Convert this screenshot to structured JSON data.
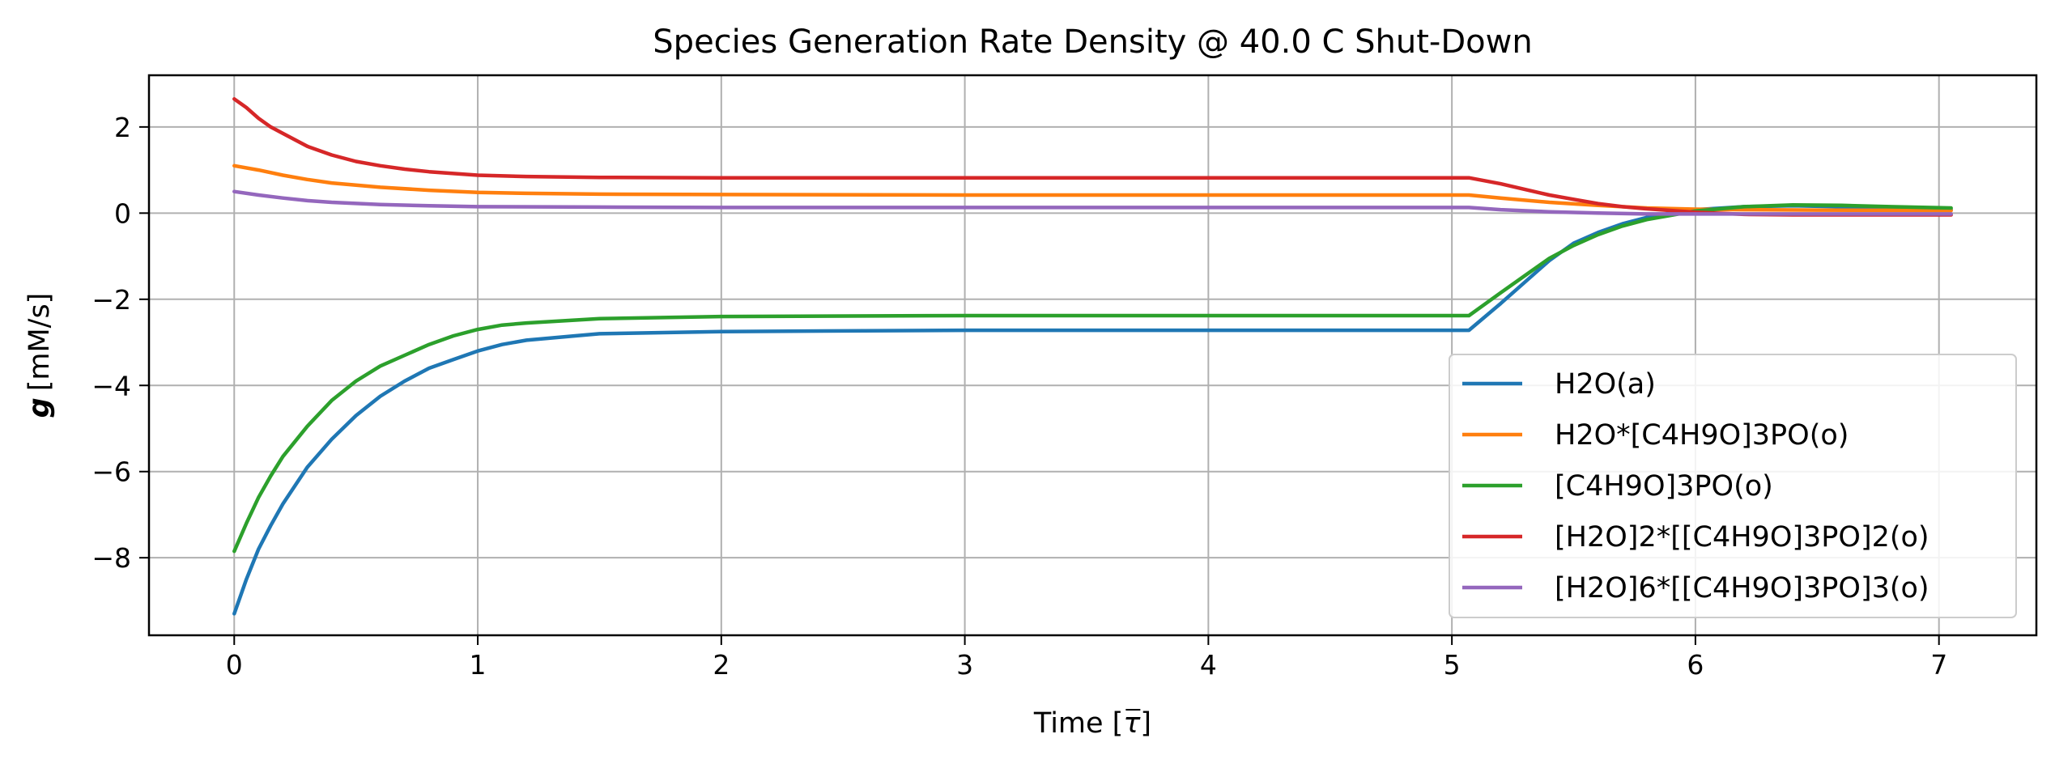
{
  "chart_data": {
    "type": "line",
    "title": "Species Generation Rate Density @ 40.0 C Shut-Down",
    "xlabel_prefix": "Time [",
    "xlabel_symbol": "τ",
    "xlabel_suffix": "]",
    "ylabel_symbol": "g",
    "ylabel_unit": "[mM/s]",
    "xlim": [
      -0.35,
      7.4
    ],
    "ylim": [
      -9.8,
      3.2
    ],
    "xticks": [
      0,
      1,
      2,
      3,
      4,
      5,
      6,
      7
    ],
    "yticks": [
      -8,
      -6,
      -4,
      -2,
      0,
      2
    ],
    "xtick_labels": [
      "0",
      "1",
      "2",
      "3",
      "4",
      "5",
      "6",
      "7"
    ],
    "ytick_labels": [
      "−8",
      "−6",
      "−4",
      "−2",
      "0",
      "2"
    ],
    "grid": true,
    "legend_position": "lower-right",
    "series": [
      {
        "name": "H2O(a)",
        "color": "#1f77b4",
        "points": [
          [
            0,
            -9.3
          ],
          [
            0.05,
            -8.5
          ],
          [
            0.1,
            -7.8
          ],
          [
            0.15,
            -7.25
          ],
          [
            0.2,
            -6.75
          ],
          [
            0.3,
            -5.9
          ],
          [
            0.4,
            -5.25
          ],
          [
            0.5,
            -4.7
          ],
          [
            0.6,
            -4.25
          ],
          [
            0.7,
            -3.9
          ],
          [
            0.8,
            -3.6
          ],
          [
            0.9,
            -3.4
          ],
          [
            1.0,
            -3.2
          ],
          [
            1.1,
            -3.05
          ],
          [
            1.2,
            -2.95
          ],
          [
            1.4,
            -2.85
          ],
          [
            1.5,
            -2.8
          ],
          [
            2.0,
            -2.75
          ],
          [
            3.0,
            -2.72
          ],
          [
            4.0,
            -2.72
          ],
          [
            5.07,
            -2.72
          ],
          [
            5.2,
            -2.1
          ],
          [
            5.3,
            -1.6
          ],
          [
            5.4,
            -1.1
          ],
          [
            5.5,
            -0.7
          ],
          [
            5.6,
            -0.45
          ],
          [
            5.7,
            -0.25
          ],
          [
            5.8,
            -0.1
          ],
          [
            5.9,
            0.0
          ],
          [
            6.0,
            0.08
          ],
          [
            6.2,
            0.15
          ],
          [
            6.4,
            0.17
          ],
          [
            6.6,
            0.15
          ],
          [
            6.8,
            0.12
          ],
          [
            7.05,
            0.08
          ]
        ]
      },
      {
        "name": "H2O*[C4H9O]3PO(o)",
        "color": "#ff7f0e",
        "points": [
          [
            0,
            1.1
          ],
          [
            0.1,
            1.0
          ],
          [
            0.2,
            0.88
          ],
          [
            0.3,
            0.78
          ],
          [
            0.4,
            0.7
          ],
          [
            0.6,
            0.6
          ],
          [
            0.8,
            0.53
          ],
          [
            1.0,
            0.48
          ],
          [
            1.2,
            0.46
          ],
          [
            1.5,
            0.44
          ],
          [
            2.0,
            0.43
          ],
          [
            3.0,
            0.42
          ],
          [
            4.0,
            0.42
          ],
          [
            5.07,
            0.42
          ],
          [
            5.2,
            0.35
          ],
          [
            5.4,
            0.25
          ],
          [
            5.6,
            0.18
          ],
          [
            5.8,
            0.12
          ],
          [
            6.0,
            0.09
          ],
          [
            6.2,
            0.08
          ],
          [
            6.5,
            0.07
          ],
          [
            7.05,
            0.06
          ]
        ]
      },
      {
        "name": "[C4H9O]3PO(o)",
        "color": "#2ca02c",
        "points": [
          [
            0,
            -7.85
          ],
          [
            0.05,
            -7.2
          ],
          [
            0.1,
            -6.6
          ],
          [
            0.15,
            -6.1
          ],
          [
            0.2,
            -5.65
          ],
          [
            0.3,
            -4.95
          ],
          [
            0.4,
            -4.35
          ],
          [
            0.5,
            -3.9
          ],
          [
            0.6,
            -3.55
          ],
          [
            0.7,
            -3.3
          ],
          [
            0.8,
            -3.05
          ],
          [
            0.9,
            -2.85
          ],
          [
            1.0,
            -2.7
          ],
          [
            1.1,
            -2.6
          ],
          [
            1.2,
            -2.55
          ],
          [
            1.5,
            -2.45
          ],
          [
            2.0,
            -2.4
          ],
          [
            3.0,
            -2.38
          ],
          [
            4.0,
            -2.38
          ],
          [
            5.07,
            -2.38
          ],
          [
            5.2,
            -1.85
          ],
          [
            5.3,
            -1.45
          ],
          [
            5.4,
            -1.05
          ],
          [
            5.5,
            -0.75
          ],
          [
            5.6,
            -0.5
          ],
          [
            5.7,
            -0.3
          ],
          [
            5.8,
            -0.15
          ],
          [
            5.9,
            -0.05
          ],
          [
            6.0,
            0.05
          ],
          [
            6.2,
            0.15
          ],
          [
            6.4,
            0.19
          ],
          [
            6.6,
            0.18
          ],
          [
            6.8,
            0.15
          ],
          [
            7.05,
            0.12
          ]
        ]
      },
      {
        "name": "[H2O]2*[[C4H9O]3PO]2(o)",
        "color": "#d62728",
        "points": [
          [
            0,
            2.65
          ],
          [
            0.05,
            2.45
          ],
          [
            0.1,
            2.2
          ],
          [
            0.15,
            2.0
          ],
          [
            0.2,
            1.85
          ],
          [
            0.3,
            1.55
          ],
          [
            0.4,
            1.35
          ],
          [
            0.5,
            1.2
          ],
          [
            0.6,
            1.1
          ],
          [
            0.7,
            1.02
          ],
          [
            0.8,
            0.96
          ],
          [
            0.9,
            0.92
          ],
          [
            1.0,
            0.88
          ],
          [
            1.2,
            0.85
          ],
          [
            1.5,
            0.83
          ],
          [
            2.0,
            0.82
          ],
          [
            3.0,
            0.82
          ],
          [
            4.0,
            0.82
          ],
          [
            5.07,
            0.82
          ],
          [
            5.2,
            0.68
          ],
          [
            5.3,
            0.55
          ],
          [
            5.4,
            0.42
          ],
          [
            5.5,
            0.32
          ],
          [
            5.6,
            0.22
          ],
          [
            5.7,
            0.15
          ],
          [
            5.8,
            0.1
          ],
          [
            6.0,
            0.02
          ],
          [
            6.2,
            -0.03
          ],
          [
            6.4,
            -0.04
          ],
          [
            6.6,
            -0.04
          ],
          [
            7.05,
            -0.04
          ]
        ]
      },
      {
        "name": "[H2O]6*[[C4H9O]3PO]3(o)",
        "color": "#9467bd",
        "points": [
          [
            0,
            0.5
          ],
          [
            0.1,
            0.42
          ],
          [
            0.2,
            0.35
          ],
          [
            0.3,
            0.29
          ],
          [
            0.4,
            0.25
          ],
          [
            0.6,
            0.2
          ],
          [
            0.8,
            0.17
          ],
          [
            1.0,
            0.15
          ],
          [
            1.5,
            0.14
          ],
          [
            2.0,
            0.13
          ],
          [
            3.0,
            0.13
          ],
          [
            4.0,
            0.13
          ],
          [
            5.07,
            0.13
          ],
          [
            5.2,
            0.08
          ],
          [
            5.4,
            0.03
          ],
          [
            5.6,
            0.0
          ],
          [
            5.8,
            -0.02
          ],
          [
            6.0,
            -0.02
          ],
          [
            6.5,
            -0.02
          ],
          [
            7.05,
            -0.02
          ]
        ]
      }
    ]
  }
}
